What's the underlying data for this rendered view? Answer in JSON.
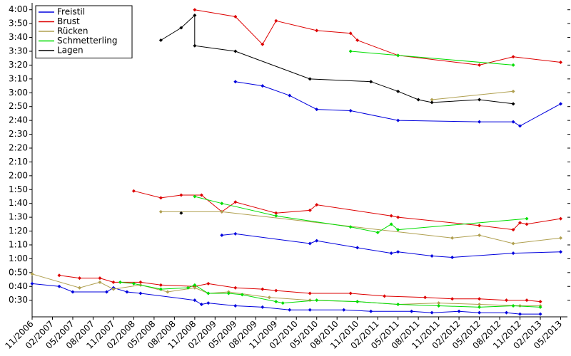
{
  "chart_data": {
    "type": "line",
    "legend": "upper left",
    "ylim": [
      18,
      245
    ],
    "yticks": [
      {
        "value": 30,
        "label": "0:30"
      },
      {
        "value": 40,
        "label": "0:40"
      },
      {
        "value": 50,
        "label": "0:50"
      },
      {
        "value": 60,
        "label": "1:00"
      },
      {
        "value": 70,
        "label": "1:10"
      },
      {
        "value": 80,
        "label": "1:20"
      },
      {
        "value": 90,
        "label": "1:30"
      },
      {
        "value": 100,
        "label": "1:40"
      },
      {
        "value": 110,
        "label": "1:50"
      },
      {
        "value": 120,
        "label": "2:00"
      },
      {
        "value": 130,
        "label": "2:10"
      },
      {
        "value": 140,
        "label": "2:20"
      },
      {
        "value": 150,
        "label": "2:30"
      },
      {
        "value": 160,
        "label": "2:40"
      },
      {
        "value": 170,
        "label": "2:50"
      },
      {
        "value": 180,
        "label": "3:00"
      },
      {
        "value": 190,
        "label": "3:10"
      },
      {
        "value": 200,
        "label": "3:20"
      },
      {
        "value": 210,
        "label": "3:30"
      },
      {
        "value": 220,
        "label": "3:40"
      },
      {
        "value": 230,
        "label": "3:50"
      },
      {
        "value": 240,
        "label": "4:00"
      }
    ],
    "xlim": [
      "11/2006",
      "06/2013"
    ],
    "xticks": [
      "11/2006",
      "02/2007",
      "05/2007",
      "08/2007",
      "11/2007",
      "02/2008",
      "05/2008",
      "08/2008",
      "11/2008",
      "02/2009",
      "05/2009",
      "08/2009",
      "11/2009",
      "02/2010",
      "05/2010",
      "08/2010",
      "11/2010",
      "02/2011",
      "05/2011",
      "08/2011",
      "11/2011",
      "02/2012",
      "05/2012",
      "08/2012",
      "11/2012",
      "02/2013",
      "05/2013"
    ],
    "series": [
      {
        "name": "Freistil",
        "color": "#0000dd",
        "x": [
          "11/2006",
          "03/2007",
          "05/2007",
          "10/2007",
          "11/2007",
          "01/2008",
          "03/2008",
          "11/2008",
          "12/2008",
          "01/2009",
          "05/2009",
          "09/2009",
          "01/2010",
          "04/2010",
          "09/2010",
          "01/2011",
          "07/2011",
          "10/2011",
          "02/2012",
          "05/2012",
          "09/2012",
          "11/2012",
          "02/2013",
          null,
          "03/2009",
          "05/2009",
          "04/2010",
          "05/2010",
          "11/2010",
          "04/2011",
          "05/2011",
          "10/2011",
          "01/2012",
          "10/2012",
          "05/2013",
          null,
          "05/2009",
          "09/2009",
          "01/2010",
          "05/2010",
          "10/2010",
          "05/2011",
          "05/2012",
          "10/2012",
          "11/2012",
          "05/2013"
        ],
        "values": [
          42,
          40,
          36,
          36,
          39,
          36,
          35,
          30,
          27,
          28,
          26,
          25,
          23,
          23,
          23,
          22,
          22,
          21,
          22,
          21,
          21,
          20,
          20,
          null,
          77,
          78,
          71,
          73,
          68,
          64,
          65,
          62,
          61,
          64,
          65,
          null,
          188,
          185,
          178,
          168,
          167,
          160,
          159,
          159,
          156,
          172
        ]
      },
      {
        "name": "Brust",
        "color": "#dd0000",
        "x": [
          "03/2007",
          "06/2007",
          "09/2007",
          "11/2007",
          "03/2008",
          "06/2008",
          "11/2008",
          "01/2009",
          "05/2009",
          "09/2009",
          "11/2009",
          "04/2010",
          "10/2010",
          "03/2011",
          "09/2011",
          "01/2012",
          "05/2012",
          "09/2012",
          "12/2012",
          "02/2013",
          null,
          "02/2008",
          "06/2008",
          "09/2008",
          "12/2008",
          "03/2009",
          "05/2009",
          "11/2009",
          "04/2010",
          "05/2010",
          "04/2011",
          "05/2011",
          "05/2012",
          "10/2012",
          "11/2012",
          "12/2012",
          "05/2013",
          null,
          "11/2008",
          "05/2009",
          "09/2009",
          "11/2009",
          "05/2010",
          "10/2010",
          "11/2010",
          "05/2011",
          "05/2012",
          "10/2012",
          "05/2013"
        ],
        "values": [
          48,
          46,
          46,
          43,
          43,
          41,
          40,
          42,
          39,
          38,
          37,
          35,
          35,
          33,
          32,
          31,
          31,
          30,
          30,
          29,
          null,
          109,
          104,
          106,
          106,
          94,
          101,
          93,
          95,
          99,
          91,
          90,
          84,
          81,
          86,
          85,
          89,
          null,
          240,
          235,
          215,
          232,
          225,
          223,
          218,
          207,
          200,
          206,
          202
        ]
      },
      {
        "name": "Rücken",
        "color": "#b0a050",
        "x": [
          "11/2006",
          "06/2007",
          "09/2007",
          "11/2007",
          "03/2008",
          "07/2008",
          "11/2008",
          "01/2009",
          "04/2009",
          "10/2009",
          "04/2010",
          "11/2010",
          "05/2011",
          "11/2011",
          "05/2012",
          "11/2012",
          "02/2013",
          null,
          "06/2008",
          "03/2009",
          "01/2012",
          "05/2012",
          "10/2012",
          "05/2013",
          null,
          "10/2011",
          "10/2012"
        ],
        "values": [
          49,
          39,
          43,
          38,
          41,
          36,
          39,
          35,
          36,
          32,
          30,
          29,
          27,
          28,
          27,
          26,
          26,
          null,
          94,
          94,
          75,
          77,
          71,
          75,
          null,
          175,
          181
        ]
      },
      {
        "name": "Schmetterling",
        "color": "#00dd00",
        "x": [
          "12/2007",
          "02/2008",
          "06/2008",
          "10/2008",
          "11/2008",
          "01/2009",
          "04/2009",
          "06/2009",
          "11/2009",
          "12/2009",
          "05/2010",
          "11/2010",
          "05/2011",
          "11/2011",
          "05/2012",
          "10/2012",
          "02/2013",
          null,
          "11/2008",
          "03/2009",
          "11/2009",
          "10/2010",
          "02/2011",
          "04/2011",
          "05/2011",
          "12/2012",
          null,
          "10/2010",
          "05/2011",
          "10/2012"
        ],
        "values": [
          43,
          42,
          38,
          39,
          41,
          35,
          35,
          34,
          29,
          28,
          30,
          29,
          27,
          26,
          25,
          26,
          25,
          null,
          105,
          100,
          91,
          83,
          79,
          85,
          81,
          89,
          null,
          210,
          207,
          200
        ]
      },
      {
        "name": "Lagen",
        "color": "#000000",
        "x": [
          "09/2008",
          null,
          "06/2008",
          "09/2008",
          "11/2008",
          "11/2008",
          "05/2009",
          "04/2010",
          "01/2011",
          "05/2011",
          "08/2011",
          "10/2011",
          "05/2012",
          "10/2012"
        ],
        "values": [
          93,
          null,
          218,
          227,
          236,
          214,
          210,
          190,
          188,
          181,
          175,
          173,
          175,
          172
        ]
      }
    ]
  }
}
